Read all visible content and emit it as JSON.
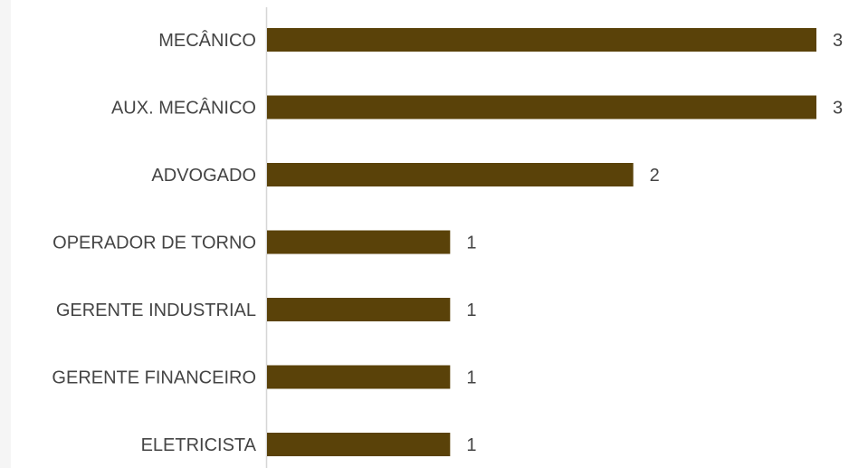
{
  "chart_data": {
    "type": "bar",
    "orientation": "horizontal",
    "categories": [
      "MECÂNICO",
      "AUX. MECÂNICO",
      "ADVOGADO",
      "OPERADOR DE TORNO",
      "GERENTE INDUSTRIAL",
      "GERENTE FINANCEIRO",
      "ELETRICISTA"
    ],
    "values": [
      3,
      3,
      2,
      1,
      1,
      1,
      1
    ],
    "data_labels": [
      "3",
      "3",
      "2",
      "1",
      "1",
      "1",
      "1"
    ],
    "title": "",
    "xlabel": "",
    "ylabel": "",
    "xlim": [
      0,
      3
    ],
    "grid": false,
    "legend": "none",
    "bar_color": "#5a4209",
    "axis_color": "#d6d6d6",
    "text_color": "#444444"
  }
}
